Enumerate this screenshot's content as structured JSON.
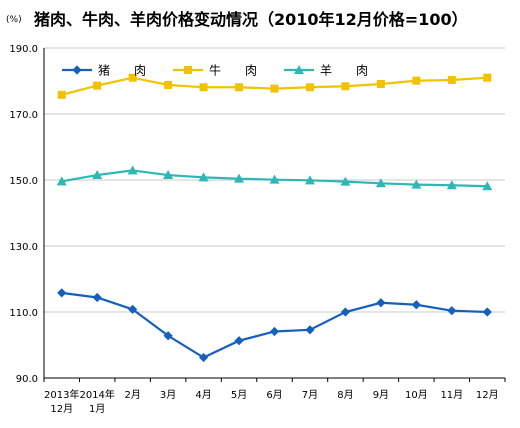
{
  "chart_data": {
    "type": "line",
    "title": "猪肉、牛肉、羊肉价格变动情况（2010年12月价格=100）",
    "unit_label": "(%)",
    "categories": [
      [
        "2013年",
        "12月"
      ],
      [
        "2014年",
        "1月"
      ],
      [
        "2月"
      ],
      [
        "3月"
      ],
      [
        "4月"
      ],
      [
        "5月"
      ],
      [
        "6月"
      ],
      [
        "7月"
      ],
      [
        "8月"
      ],
      [
        "9月"
      ],
      [
        "10月"
      ],
      [
        "11月"
      ],
      [
        "12月"
      ]
    ],
    "ylim": [
      90,
      190
    ],
    "yticks": [
      "90.0",
      "110.0",
      "130.0",
      "150.0",
      "170.0",
      "190.0"
    ],
    "grid": true,
    "legend_position": "top-left",
    "series": [
      {
        "name": "猪　　肉",
        "color": "#1560BD",
        "marker": "diamond",
        "values": [
          115.8,
          114.4,
          110.8,
          102.8,
          96.2,
          101.3,
          104.1,
          104.6,
          110.0,
          112.8,
          112.2,
          110.4,
          110.0
        ]
      },
      {
        "name": "牛　　肉",
        "color": "#F2C200",
        "marker": "square",
        "values": [
          175.8,
          178.6,
          181.0,
          178.8,
          178.1,
          178.1,
          177.7,
          178.1,
          178.4,
          179.1,
          180.1,
          180.3,
          181.0
        ]
      },
      {
        "name": "羊　　肉",
        "color": "#2DB7B5",
        "marker": "triangle",
        "values": [
          149.6,
          151.5,
          152.9,
          151.5,
          150.8,
          150.4,
          150.1,
          149.9,
          149.5,
          149.0,
          148.6,
          148.4,
          148.1
        ]
      }
    ]
  }
}
